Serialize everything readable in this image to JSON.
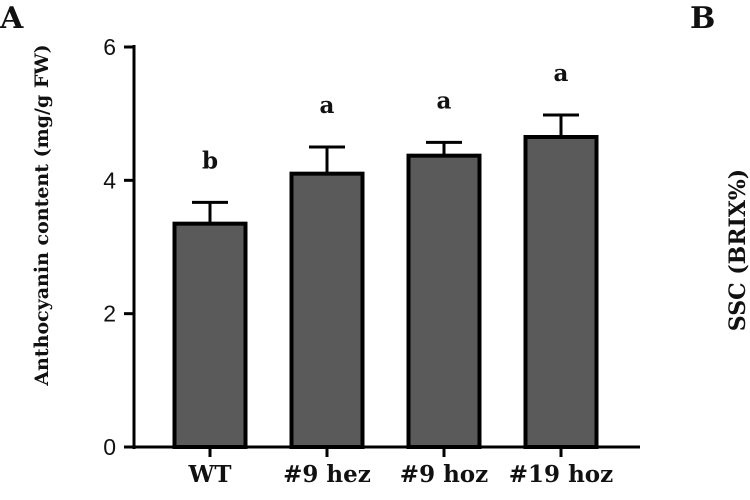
{
  "panels": {
    "left": "A",
    "right": "B"
  },
  "right_panel": {
    "ylabel": "SSC (BRIX%)"
  },
  "chart_data": {
    "type": "bar",
    "title": "",
    "xlabel": "",
    "ylabel": "Anthocyanin content (mg/g FW)",
    "categories": [
      "WT",
      "#9 hez",
      "#9 hoz",
      "#19 hoz"
    ],
    "values": [
      3.35,
      4.1,
      4.37,
      4.65
    ],
    "errors": [
      0.32,
      0.4,
      0.2,
      0.33
    ],
    "significance": [
      "b",
      "a",
      "a",
      "a"
    ],
    "ylim": [
      0,
      6
    ],
    "yticks": [
      0,
      2,
      4,
      6
    ],
    "bar_color": "#5a5a5a",
    "edge_color": "#000000"
  }
}
